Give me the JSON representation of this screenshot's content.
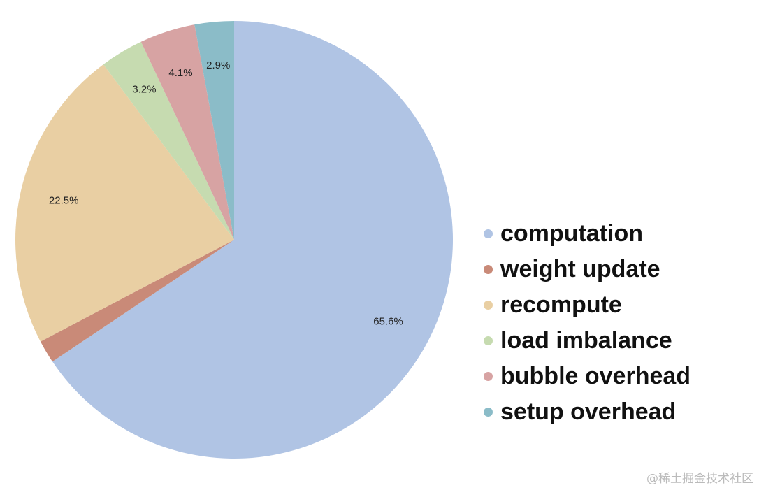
{
  "chart_data": {
    "type": "pie",
    "series": [
      {
        "name": "computation",
        "color": "#b0c4e4",
        "values": [
          65.6
        ],
        "value_labels": [
          "65.6%"
        ]
      },
      {
        "name": "weight update",
        "color": "#c98a78",
        "values": [
          1.7
        ],
        "value_labels": [
          null
        ]
      },
      {
        "name": "recompute",
        "color": "#e9cfa3",
        "values": [
          22.5
        ],
        "value_labels": [
          "22.5%"
        ]
      },
      {
        "name": "load imbalance",
        "color": "#c6dbb0",
        "values": [
          3.2
        ],
        "value_labels": [
          "3.2%"
        ]
      },
      {
        "name": "bubble overhead",
        "color": "#d7a3a3",
        "values": [
          4.1
        ],
        "value_labels": [
          "4.1%"
        ]
      },
      {
        "name": "setup overhead",
        "color": "#8bbcc8",
        "values": [
          2.9
        ],
        "value_labels": [
          "2.9%"
        ]
      }
    ],
    "legend": "right"
  },
  "watermark": "@稀土掘金技术社区"
}
